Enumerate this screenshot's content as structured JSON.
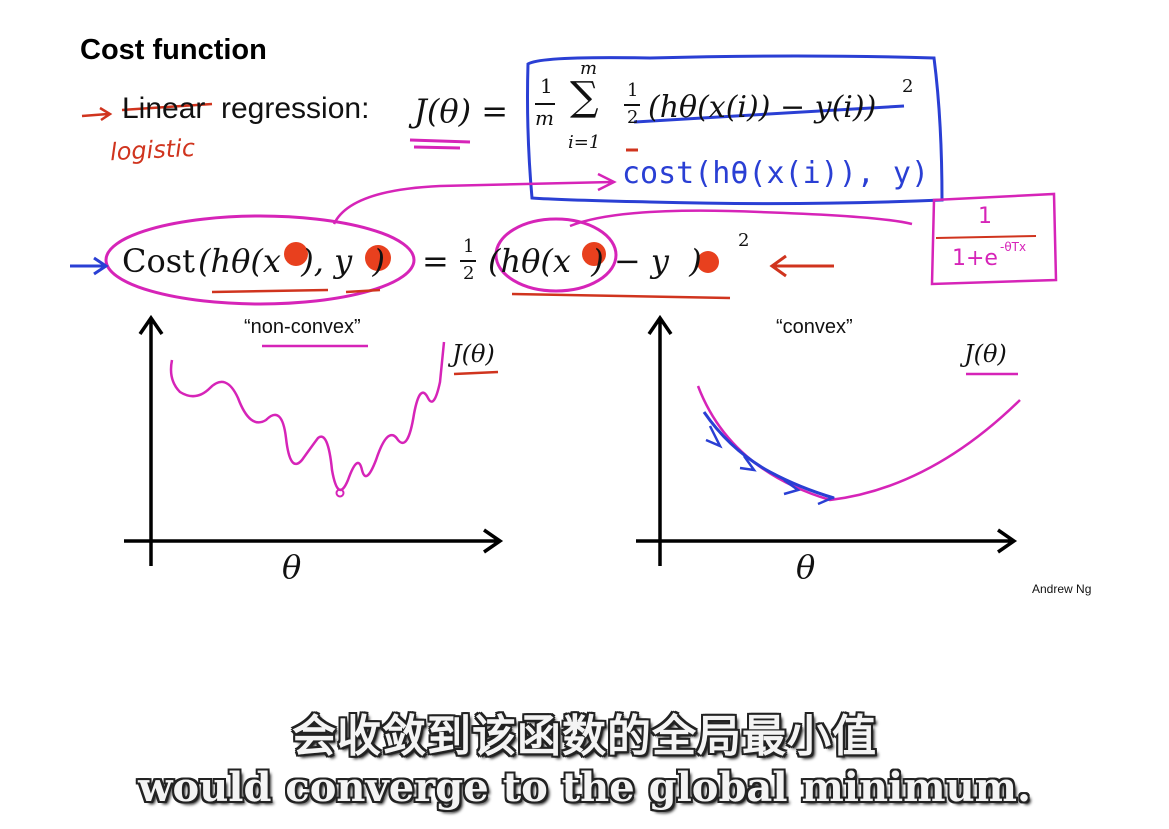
{
  "slide": {
    "title": "Cost function",
    "author": "Andrew Ng",
    "regression_word_struck": "Linear",
    "regression_word_rest": "regression:",
    "logistic_handwritten": "logistic",
    "j_theta_lhs": "J(θ) =",
    "frac_1": "1",
    "frac_m": "m",
    "sum_sigma": "∑",
    "sum_top": "m",
    "sum_bottom": "i=1",
    "half_num": "1",
    "half_den": "2",
    "struck_term": "(hθ(x(i)) − y(i))",
    "square": "2",
    "cost_handwritten": "cost(hθ(x(i)), y)",
    "cost_lhs_word": "Cost",
    "cost_lhs_args": "(hθ(x  ), y  )",
    "cost_equals": "=",
    "cost_rhs": "(hθ(x  ) − y  )",
    "sigmoid_num": "1",
    "sigmoid_den": "1+e",
    "sigmoid_exp": "-θTx",
    "arrow_left_glyph": "⟵"
  },
  "plots": {
    "left_label": "“non-convex”",
    "right_label": "“convex”",
    "j_label": "J(θ)",
    "theta_label": "θ"
  },
  "subtitles": {
    "chinese": "会收敛到该函数的全局最小值",
    "english": "would converge to the global minimum."
  },
  "colors": {
    "ink_red": "#d0341e",
    "ink_pink": "#d624b8",
    "ink_blue": "#2a3fd4",
    "ink_black": "#111111"
  }
}
